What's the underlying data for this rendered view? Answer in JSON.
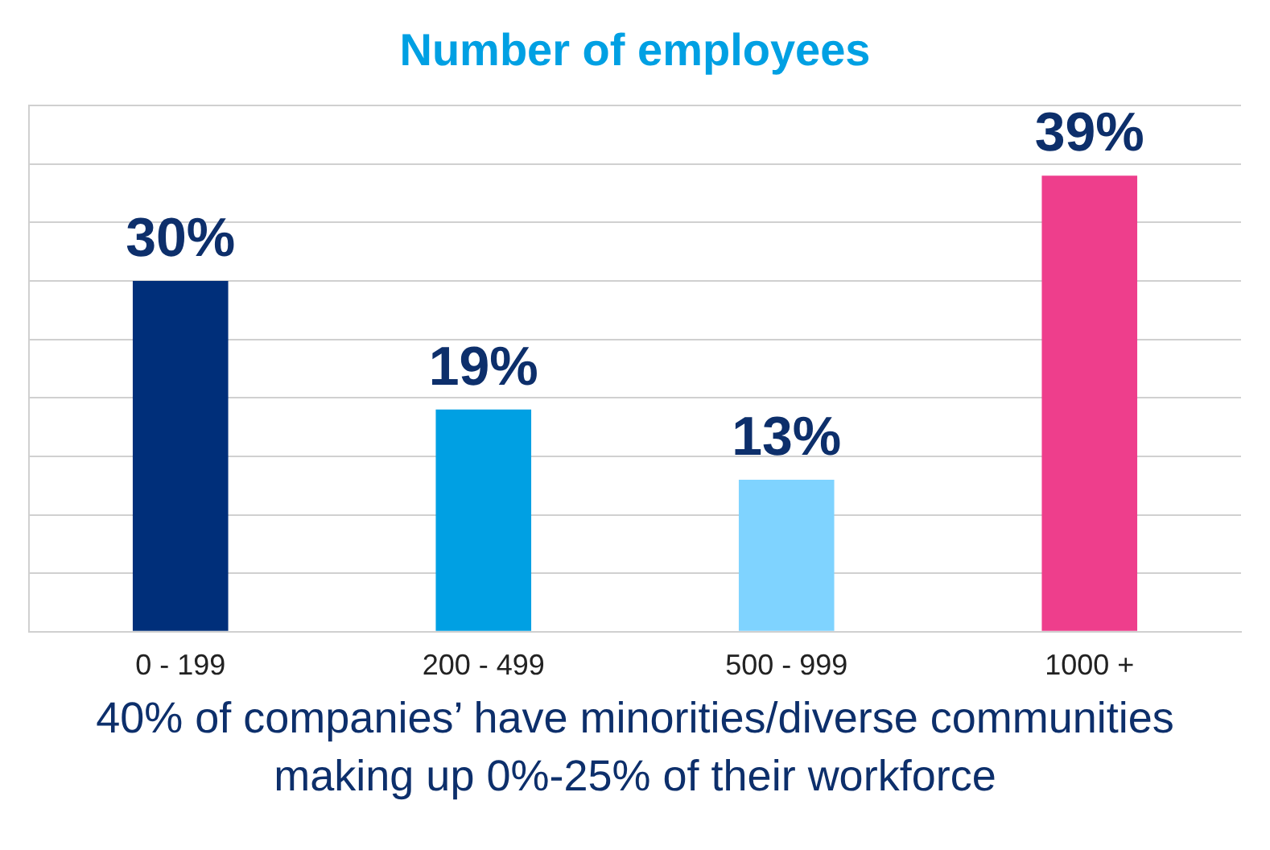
{
  "chart_data": {
    "type": "bar",
    "title": "Number of employees",
    "categories": [
      "0 - 199",
      "200 - 499",
      "500 - 999",
      "1000 +"
    ],
    "values": [
      30,
      19,
      13,
      39
    ],
    "colors": [
      "#002f7a",
      "#00a0e3",
      "#7fd3ff",
      "#ee3e8c"
    ],
    "value_labels": [
      "30%",
      "19%",
      "13%",
      "39%"
    ],
    "ylim": [
      0,
      45
    ],
    "yticks": [
      0,
      5,
      10,
      15,
      20,
      25,
      30,
      35,
      40,
      45
    ],
    "grid": "y",
    "tick_labels": "x",
    "legend": false,
    "annotations": [
      "40% of companies’ have minorities/diverse communities making up 0%-25% of their workforce"
    ]
  }
}
